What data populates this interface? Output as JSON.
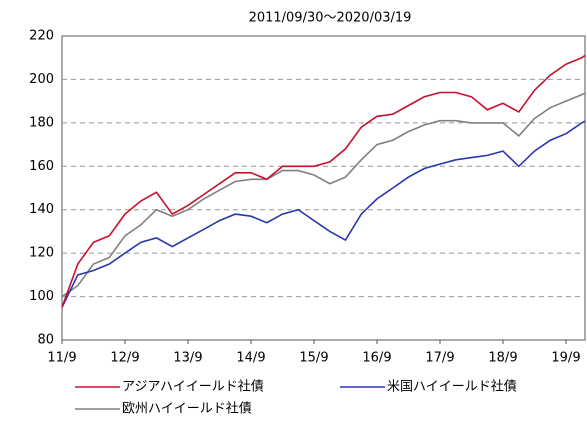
{
  "chart_data": {
    "type": "line",
    "subtitle": "2011/09/30～2020/03/19",
    "x": [
      "11/9",
      "11/12",
      "12/3",
      "12/6",
      "12/9",
      "12/12",
      "13/3",
      "13/6",
      "13/9",
      "13/12",
      "14/3",
      "14/6",
      "14/9",
      "14/12",
      "15/3",
      "15/6",
      "15/9",
      "15/12",
      "16/3",
      "16/6",
      "16/9",
      "16/12",
      "17/3",
      "17/6",
      "17/9",
      "17/12",
      "18/3",
      "18/6",
      "18/9",
      "18/12",
      "19/3",
      "19/6",
      "19/9",
      "19/12",
      "20/3"
    ],
    "xticks": [
      "11/9",
      "12/9",
      "13/9",
      "14/9",
      "15/9",
      "16/9",
      "17/9",
      "18/9",
      "19/9"
    ],
    "series": [
      {
        "name": "アジアハイイールド社債",
        "color": "#c8102e",
        "values": [
          95,
          115,
          125,
          128,
          138,
          144,
          148,
          138,
          142,
          147,
          152,
          157,
          157,
          154,
          160,
          160,
          160,
          162,
          168,
          178,
          183,
          184,
          188,
          192,
          194,
          194,
          192,
          186,
          189,
          185,
          195,
          202,
          207,
          210,
          215
        ]
      },
      {
        "name": "米国ハイイールド社債",
        "color": "#2a35b0",
        "values": [
          95,
          110,
          112,
          115,
          120,
          125,
          127,
          123,
          127,
          131,
          135,
          138,
          137,
          134,
          138,
          140,
          135,
          130,
          126,
          138,
          145,
          150,
          155,
          159,
          161,
          163,
          164,
          165,
          167,
          160,
          167,
          172,
          175,
          180,
          184
        ]
      },
      {
        "name": "欧州ハイイールド社債",
        "color": "#808080",
        "values": [
          100,
          105,
          115,
          118,
          128,
          133,
          140,
          137,
          140,
          145,
          149,
          153,
          154,
          154,
          158,
          158,
          156,
          152,
          155,
          163,
          170,
          172,
          176,
          179,
          181,
          181,
          180,
          180,
          180,
          174,
          182,
          187,
          190,
          193,
          196
        ]
      }
    ],
    "ylim": [
      80,
      220
    ],
    "yticks": [
      80,
      100,
      120,
      140,
      160,
      180,
      200,
      220
    ],
    "grid": true
  }
}
